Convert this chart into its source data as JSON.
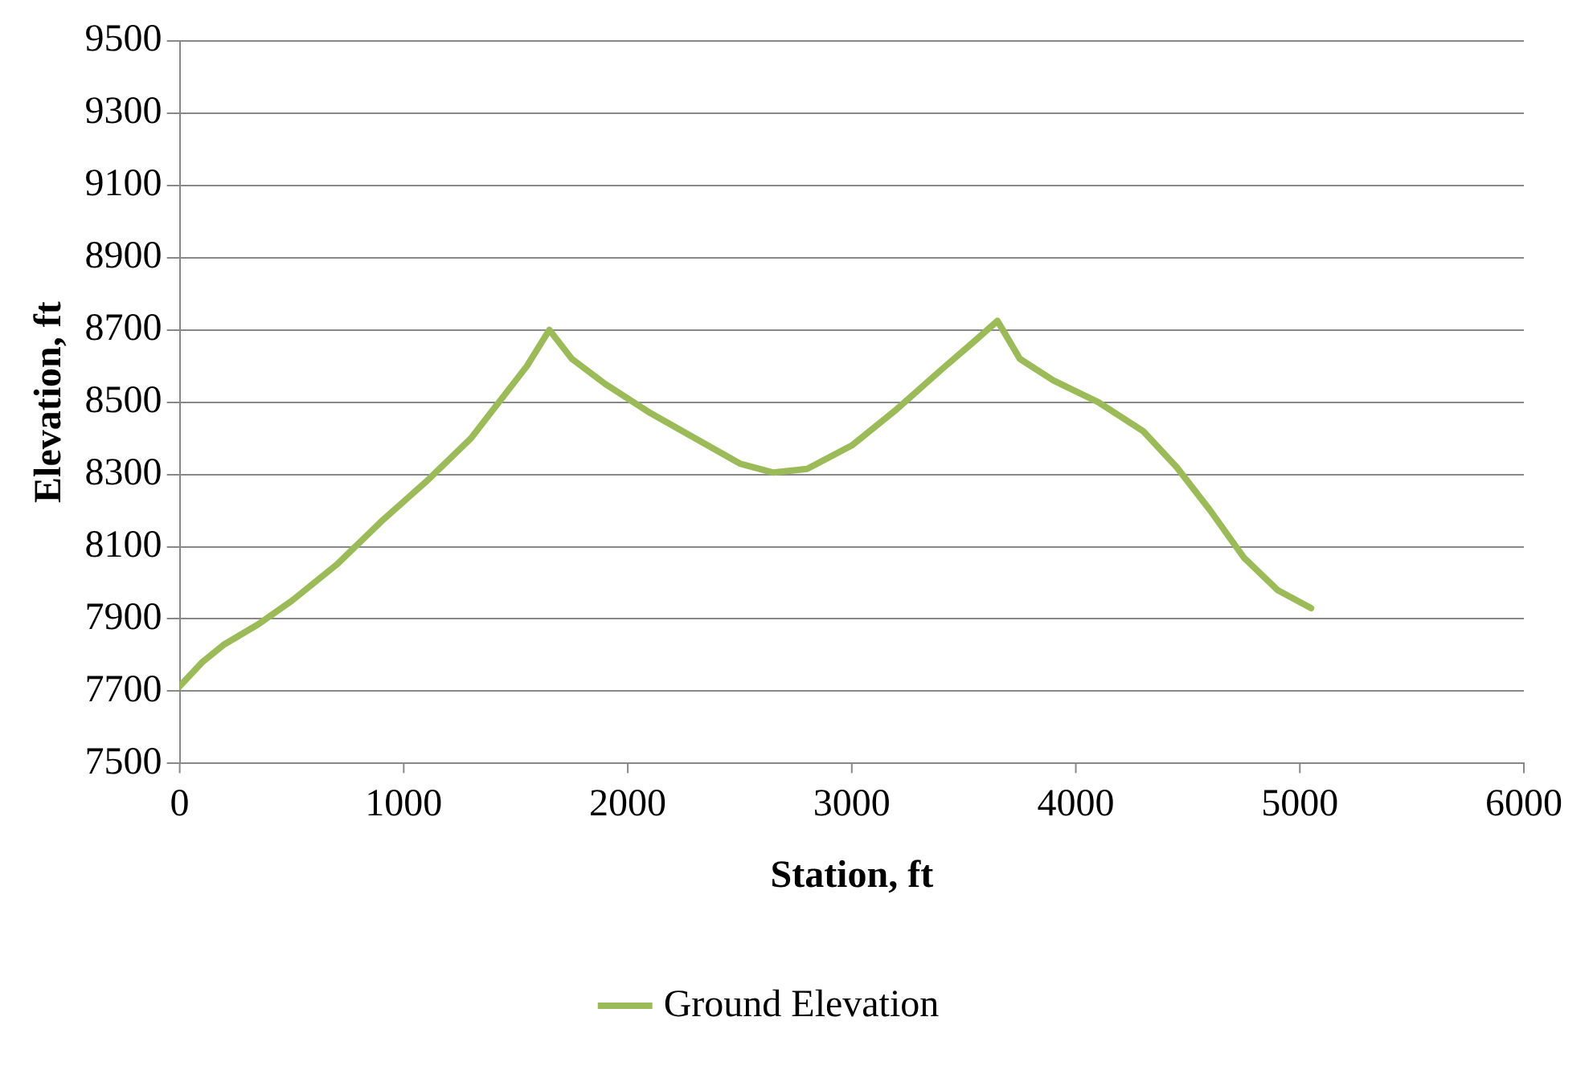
{
  "chart_data": {
    "type": "line",
    "xlabel": "Station, ft",
    "ylabel": "Elevation, ft",
    "xlim": [
      0,
      6000
    ],
    "xticks": [
      0,
      1000,
      2000,
      3000,
      4000,
      5000,
      6000
    ],
    "ylim": [
      7500,
      9500
    ],
    "yticks": [
      7500,
      7700,
      7900,
      8100,
      8300,
      8500,
      8700,
      8900,
      9100,
      9300,
      9500
    ],
    "grid": "y",
    "legend": "bottom",
    "marker": "none",
    "line_style": "solid",
    "series": [
      {
        "name": "Ground Elevation",
        "color": "#9bbb59",
        "x": [
          0,
          100,
          200,
          350,
          500,
          700,
          900,
          1100,
          1300,
          1450,
          1550,
          1650,
          1750,
          1900,
          2100,
          2300,
          2500,
          2650,
          2800,
          3000,
          3200,
          3400,
          3550,
          3650,
          3750,
          3900,
          4100,
          4300,
          4450,
          4600,
          4750,
          4900,
          5050
        ],
        "values": [
          7714,
          7780,
          7830,
          7885,
          7950,
          8050,
          8170,
          8280,
          8400,
          8520,
          8600,
          8700,
          8620,
          8550,
          8470,
          8400,
          8330,
          8305,
          8315,
          8380,
          8480,
          8590,
          8670,
          8725,
          8620,
          8560,
          8500,
          8420,
          8320,
          8200,
          8070,
          7980,
          7930
        ]
      }
    ]
  }
}
